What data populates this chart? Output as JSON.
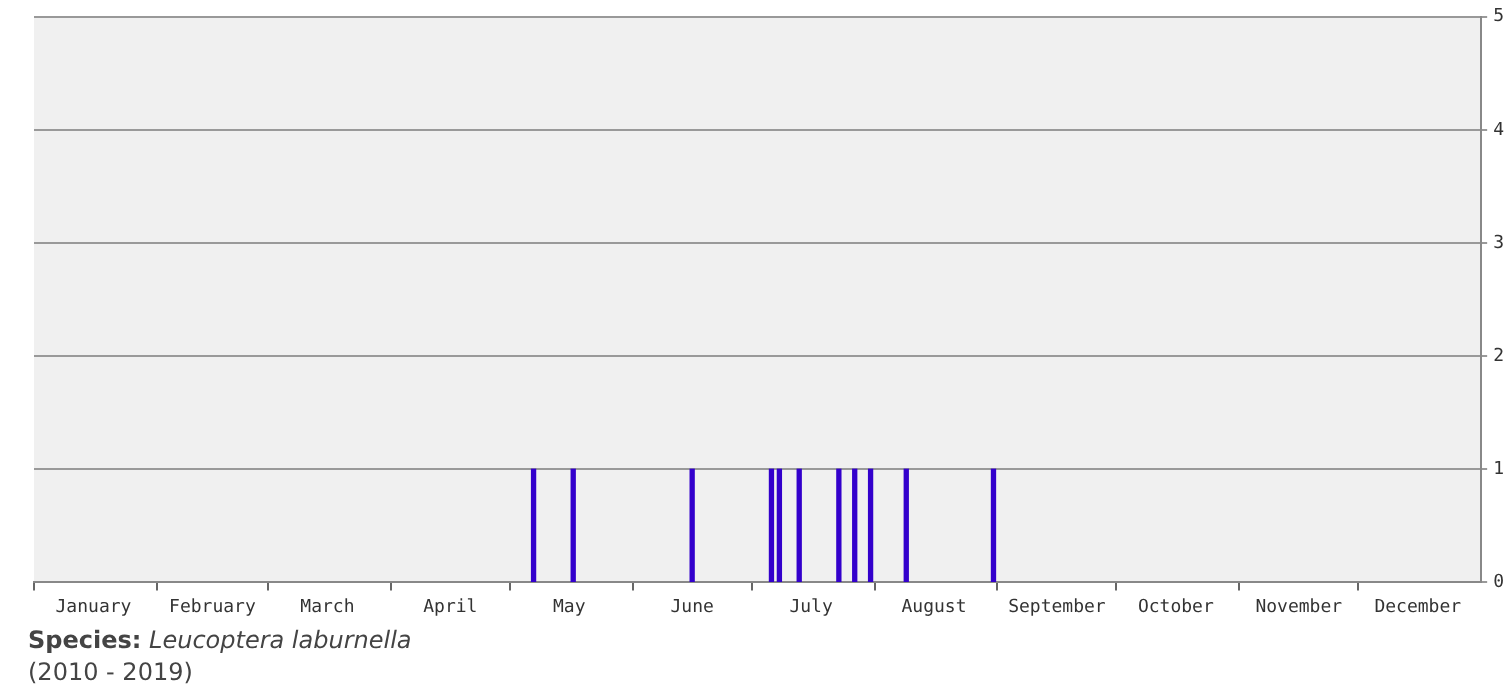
{
  "chart_data": {
    "type": "bar",
    "color": "#3300cc",
    "x": [
      "--05-07",
      "--05-17",
      "--06-16",
      "--07-06",
      "--07-08",
      "--07-13",
      "--07-23",
      "--07-27",
      "--07-31",
      "--08-09",
      "--08-31"
    ],
    "values": [
      1,
      1,
      1,
      1,
      1,
      1,
      1,
      1,
      1,
      1,
      1
    ],
    "xlim": [
      "--01-01",
      "--12-31"
    ],
    "xticks": [
      {
        "value": "--01-01",
        "label": null
      },
      {
        "value": "--01-16",
        "label": "January"
      },
      {
        "value": "--02-01",
        "label": null
      },
      {
        "value": "--02-15",
        "label": "February"
      },
      {
        "value": "--03-01",
        "label": null
      },
      {
        "value": "--03-16",
        "label": "March"
      },
      {
        "value": "--04-01",
        "label": null
      },
      {
        "value": "--04-16",
        "label": "April"
      },
      {
        "value": "--05-01",
        "label": null
      },
      {
        "value": "--05-16",
        "label": "May"
      },
      {
        "value": "--06-01",
        "label": null
      },
      {
        "value": "--06-16",
        "label": "June"
      },
      {
        "value": "--07-01",
        "label": null
      },
      {
        "value": "--07-16",
        "label": "July"
      },
      {
        "value": "--08-01",
        "label": null
      },
      {
        "value": "--08-16",
        "label": "August"
      },
      {
        "value": "--09-01",
        "label": null
      },
      {
        "value": "--09-16",
        "label": "September"
      },
      {
        "value": "--10-01",
        "label": null
      },
      {
        "value": "--10-16",
        "label": "October"
      },
      {
        "value": "--11-01",
        "label": null
      },
      {
        "value": "--11-16",
        "label": "November"
      },
      {
        "value": "--12-01",
        "label": null
      },
      {
        "value": "--12-16",
        "label": "December"
      }
    ],
    "ylim": [
      0,
      5
    ],
    "yticks": [
      0,
      1,
      2,
      3,
      4,
      5
    ],
    "grid": "y",
    "legend": false,
    "annotations": [
      "Species:",
      "Leucoptera laburnella",
      "(2010 - 2019)"
    ]
  }
}
